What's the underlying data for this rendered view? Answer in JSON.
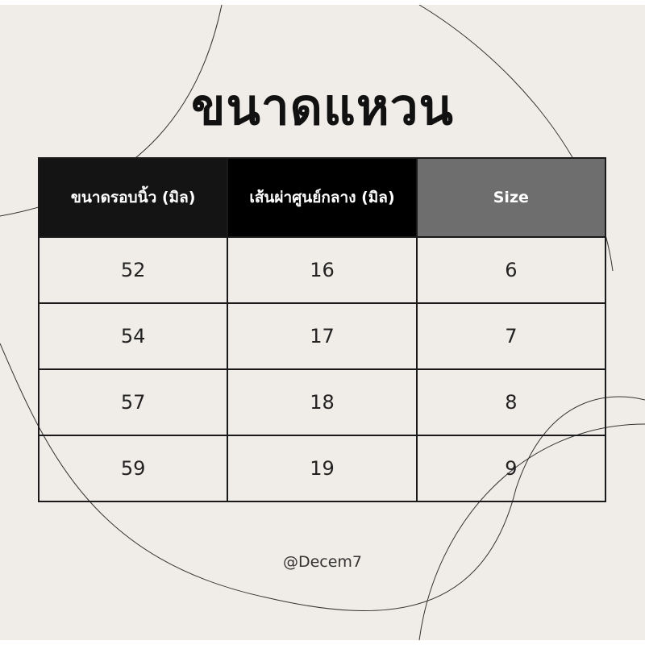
{
  "title": "ขนาดแหวน",
  "table": {
    "headers": [
      "ขนาดรอบนิ้ว (มิล)",
      "เส้นผ่าศูนย์กลาง (มิล)",
      "Size"
    ],
    "header_colors": [
      "#141414",
      "#000000",
      "#6e6e6e"
    ],
    "rows": [
      [
        "52",
        "16",
        "6"
      ],
      [
        "54",
        "17",
        "7"
      ],
      [
        "57",
        "18",
        "8"
      ],
      [
        "59",
        "19",
        "9"
      ]
    ]
  },
  "handle": "@Decem7",
  "background_color": "#f0ece7"
}
